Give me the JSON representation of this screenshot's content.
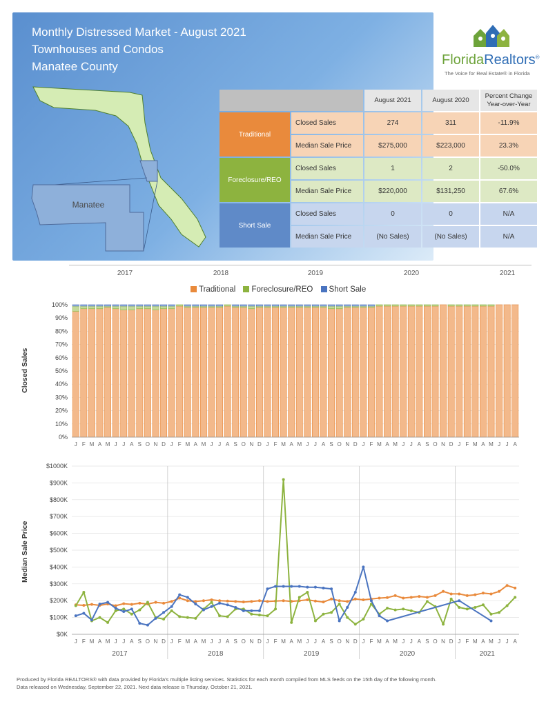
{
  "header": {
    "title_line1": "Monthly Distressed Market - August 2021",
    "title_line2": "Townhouses and Condos",
    "title_line3": "Manatee County",
    "map_label": "Manatee"
  },
  "logo": {
    "brand_part1": "Florida",
    "brand_part2": "Realtors",
    "reg": "®",
    "tagline": "The Voice for Real Estate® in Florida"
  },
  "table": {
    "col1": "August 2021",
    "col2": "August 2020",
    "col3_line1": "Percent Change",
    "col3_line2": "Year-over-Year",
    "groups": [
      {
        "name": "Traditional",
        "rows": [
          {
            "metric": "Closed Sales",
            "v1": "274",
            "v2": "311",
            "pct": "-11.9%"
          },
          {
            "metric": "Median Sale Price",
            "v1": "$275,000",
            "v2": "$223,000",
            "pct": "23.3%"
          }
        ]
      },
      {
        "name": "Foreclosure/REO",
        "rows": [
          {
            "metric": "Closed Sales",
            "v1": "1",
            "v2": "2",
            "pct": "-50.0%"
          },
          {
            "metric": "Median Sale Price",
            "v1": "$220,000",
            "v2": "$131,250",
            "pct": "67.6%"
          }
        ]
      },
      {
        "name": "Short Sale",
        "rows": [
          {
            "metric": "Closed Sales",
            "v1": "0",
            "v2": "0",
            "pct": "N/A"
          },
          {
            "metric": "Median Sale Price",
            "v1": "(No Sales)",
            "v2": "(No Sales)",
            "pct": "N/A"
          }
        ]
      }
    ]
  },
  "years": [
    "2017",
    "2018",
    "2019",
    "2020",
    "2021"
  ],
  "legend": [
    "Traditional",
    "Foreclosure/REO",
    "Short Sale"
  ],
  "colors": {
    "traditional": "#e98a3c",
    "foreclosure": "#8db33f",
    "short": "#4a74c0"
  },
  "footer": {
    "line1": "Produced by Florida REALTORS® with data provided by Florida's multiple listing services. Statistics for each month compiled from MLS feeds on the 15th day of the following month.",
    "line2": "Data released on Wednesday, September 22, 2021. Next data release is Thursday, October 21, 2021."
  },
  "chart_data": [
    {
      "type": "bar",
      "stacked": true,
      "ylabel": "Closed Sales",
      "ylim": [
        0,
        100
      ],
      "yticks": [
        "0%",
        "10%",
        "20%",
        "30%",
        "40%",
        "50%",
        "60%",
        "70%",
        "80%",
        "90%",
        "100%"
      ],
      "months": [
        "J",
        "F",
        "M",
        "A",
        "M",
        "J",
        "J",
        "A",
        "S",
        "O",
        "N",
        "D",
        "J",
        "F",
        "M",
        "A",
        "M",
        "J",
        "J",
        "A",
        "S",
        "O",
        "N",
        "D",
        "J",
        "F",
        "M",
        "A",
        "M",
        "J",
        "J",
        "A",
        "S",
        "O",
        "N",
        "D",
        "J",
        "F",
        "M",
        "A",
        "M",
        "J",
        "J",
        "A",
        "S",
        "O",
        "N",
        "D",
        "J",
        "F",
        "M",
        "A",
        "M",
        "J",
        "J",
        "A"
      ],
      "series": [
        {
          "name": "Traditional",
          "values": [
            95,
            97,
            97,
            97,
            98,
            97,
            96,
            96,
            97,
            97,
            96,
            97,
            97,
            99,
            98,
            98,
            98,
            98,
            98,
            99,
            98,
            98,
            97,
            98,
            98,
            98,
            98,
            98,
            98,
            98,
            98,
            98,
            97,
            97,
            98,
            98,
            98,
            98,
            99,
            99,
            99,
            99,
            99,
            99,
            99,
            99,
            100,
            99,
            99,
            99,
            99,
            99,
            99,
            100,
            100,
            100
          ]
        },
        {
          "name": "Foreclosure/REO",
          "values": [
            4,
            2,
            2,
            2,
            1,
            2,
            3,
            3,
            2,
            2,
            3,
            2,
            2,
            1,
            1,
            1,
            1,
            1,
            1,
            1,
            1,
            1,
            2,
            1,
            1,
            1,
            1,
            1,
            1,
            1,
            1,
            1,
            2,
            2,
            1,
            1,
            1,
            1,
            1,
            1,
            1,
            1,
            1,
            1,
            1,
            1,
            0,
            1,
            1,
            1,
            1,
            1,
            1,
            0,
            0,
            0
          ]
        },
        {
          "name": "Short Sale",
          "values": [
            1,
            1,
            1,
            1,
            1,
            1,
            1,
            1,
            1,
            1,
            1,
            1,
            1,
            0,
            1,
            1,
            1,
            1,
            1,
            0,
            1,
            1,
            1,
            1,
            1,
            1,
            1,
            1,
            1,
            1,
            1,
            1,
            1,
            1,
            1,
            1,
            1,
            1,
            0,
            0,
            0,
            0,
            0,
            0,
            0,
            0,
            0,
            0,
            0,
            0,
            0,
            0,
            0,
            0,
            0,
            0
          ]
        }
      ]
    },
    {
      "type": "line",
      "ylabel": "Median Sale Price",
      "ylim": [
        0,
        1000
      ],
      "yticks": [
        "$0K",
        "$100K",
        "$200K",
        "$300K",
        "$400K",
        "$500K",
        "$600K",
        "$700K",
        "$800K",
        "$900K",
        "$1000K"
      ],
      "months": [
        "J",
        "F",
        "M",
        "A",
        "M",
        "J",
        "J",
        "A",
        "S",
        "O",
        "N",
        "D",
        "J",
        "F",
        "M",
        "A",
        "M",
        "J",
        "J",
        "A",
        "S",
        "O",
        "N",
        "D",
        "J",
        "F",
        "M",
        "A",
        "M",
        "J",
        "J",
        "A",
        "S",
        "O",
        "N",
        "D",
        "J",
        "F",
        "M",
        "A",
        "M",
        "J",
        "J",
        "A",
        "S",
        "O",
        "N",
        "D",
        "J",
        "F",
        "M",
        "A",
        "M",
        "J",
        "J",
        "A"
      ],
      "series": [
        {
          "name": "Traditional",
          "values": [
            175,
            172,
            178,
            172,
            180,
            170,
            182,
            178,
            185,
            180,
            190,
            185,
            195,
            215,
            200,
            195,
            200,
            205,
            200,
            198,
            195,
            192,
            195,
            200,
            195,
            198,
            200,
            196,
            200,
            205,
            198,
            192,
            210,
            200,
            195,
            210,
            205,
            210,
            215,
            218,
            230,
            215,
            220,
            225,
            220,
            230,
            255,
            240,
            240,
            230,
            235,
            245,
            240,
            255,
            290,
            275
          ]
        },
        {
          "name": "Foreclosure/REO",
          "values": [
            170,
            250,
            80,
            100,
            70,
            140,
            150,
            120,
            145,
            190,
            100,
            90,
            140,
            105,
            100,
            95,
            150,
            190,
            110,
            105,
            150,
            150,
            120,
            115,
            110,
            150,
            920,
            70,
            220,
            250,
            80,
            120,
            130,
            180,
            100,
            60,
            90,
            180,
            120,
            155,
            145,
            150,
            140,
            130,
            195,
            165,
            60,
            210,
            160,
            150,
            160,
            175,
            120,
            130,
            170,
            220
          ]
        },
        {
          "name": "Short Sale",
          "values": [
            110,
            125,
            85,
            180,
            190,
            155,
            135,
            150,
            65,
            55,
            95,
            130,
            165,
            235,
            220,
            180,
            145,
            165,
            185,
            175,
            160,
            140,
            140,
            140,
            270,
            285,
            285,
            285,
            285,
            280,
            280,
            275,
            270,
            80,
            160,
            250,
            400,
            200,
            110,
            80,
            null,
            null,
            null,
            null,
            null,
            null,
            null,
            null,
            200,
            null,
            null,
            null,
            80,
            null,
            null,
            null
          ]
        }
      ]
    }
  ]
}
